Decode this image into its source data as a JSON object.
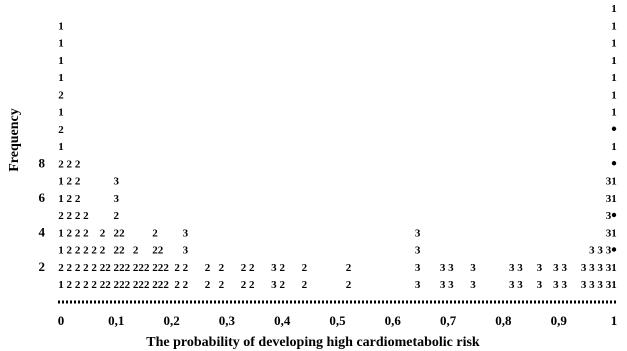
{
  "chart_data": {
    "type": "scatter",
    "title": "",
    "xlabel": "The probability of developing high cardiometabolic risk",
    "ylabel": "Frequency",
    "xlim": [
      0,
      1
    ],
    "ylim": [
      0,
      8
    ],
    "x_ticks": [
      "0",
      "0,1",
      "0,2",
      "0,3",
      "0,4",
      "0,5",
      "0,6",
      "0,7",
      "0,8",
      "0,9",
      "1"
    ],
    "y_ticks": [
      "2",
      "4",
      "6",
      "8"
    ],
    "grid": false,
    "legend": "none",
    "marker_symbols": [
      "•",
      "1",
      "2",
      "3"
    ],
    "stacks": [
      {
        "x": 0.0,
        "symbols": "1211211212121111"
      },
      {
        "x": 0.015,
        "symbols": "22222222"
      },
      {
        "x": 0.03,
        "symbols": "22222222"
      },
      {
        "x": 0.045,
        "symbols": "22222"
      },
      {
        "x": 0.06,
        "symbols": "222"
      },
      {
        "x": 0.075,
        "symbols": "2222"
      },
      {
        "x": 0.085,
        "symbols": "22"
      },
      {
        "x": 0.1,
        "symbols": "2222233"
      },
      {
        "x": 0.11,
        "symbols": "2222"
      },
      {
        "x": 0.12,
        "symbols": "22"
      },
      {
        "x": 0.135,
        "symbols": "222"
      },
      {
        "x": 0.145,
        "symbols": "22"
      },
      {
        "x": 0.155,
        "symbols": "22"
      },
      {
        "x": 0.17,
        "symbols": "2222"
      },
      {
        "x": 0.18,
        "symbols": "222"
      },
      {
        "x": 0.19,
        "symbols": "22"
      },
      {
        "x": 0.21,
        "symbols": "22"
      },
      {
        "x": 0.225,
        "symbols": "2233"
      },
      {
        "x": 0.265,
        "symbols": "22"
      },
      {
        "x": 0.29,
        "symbols": "22"
      },
      {
        "x": 0.33,
        "symbols": "22"
      },
      {
        "x": 0.345,
        "symbols": "22"
      },
      {
        "x": 0.385,
        "symbols": "33"
      },
      {
        "x": 0.4,
        "symbols": "22"
      },
      {
        "x": 0.44,
        "symbols": "22"
      },
      {
        "x": 0.52,
        "symbols": "22"
      },
      {
        "x": 0.645,
        "symbols": "3333"
      },
      {
        "x": 0.69,
        "symbols": "33"
      },
      {
        "x": 0.705,
        "symbols": "33"
      },
      {
        "x": 0.745,
        "symbols": "33"
      },
      {
        "x": 0.815,
        "symbols": "33"
      },
      {
        "x": 0.83,
        "symbols": "33"
      },
      {
        "x": 0.865,
        "symbols": "33"
      },
      {
        "x": 0.895,
        "symbols": "33"
      },
      {
        "x": 0.91,
        "symbols": "33"
      },
      {
        "x": 0.945,
        "symbols": "33"
      },
      {
        "x": 0.96,
        "symbols": "333"
      },
      {
        "x": 0.975,
        "symbols": "333"
      },
      {
        "x": 0.99,
        "symbols": "3333333"
      },
      {
        "x": 1.0,
        "symbols": "11•1•11•1•11111111"
      }
    ]
  }
}
